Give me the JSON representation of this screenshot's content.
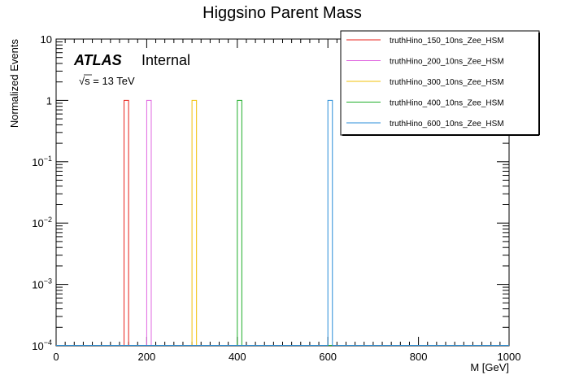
{
  "chart_data": {
    "type": "step-histogram",
    "title": "Higgsino Parent Mass",
    "xlabel": "M [GeV]",
    "ylabel": "Normalized Events",
    "xlim": [
      0,
      1000
    ],
    "ylim": [
      0.0001,
      10
    ],
    "yscale": "log",
    "bin_width": 10,
    "x_ticks": [
      {
        "value": 0,
        "label": "0"
      },
      {
        "value": 200,
        "label": "200"
      },
      {
        "value": 400,
        "label": "400"
      },
      {
        "value": 600,
        "label": "600"
      },
      {
        "value": 800,
        "label": "800"
      },
      {
        "value": 1000,
        "label": "1000"
      }
    ],
    "y_ticks": [
      {
        "exp": 1,
        "base": "10",
        "sup": ""
      },
      {
        "exp": 0,
        "base": "1",
        "sup": ""
      },
      {
        "exp": -1,
        "base": "10",
        "sup": "−1"
      },
      {
        "exp": -2,
        "base": "10",
        "sup": "−2"
      },
      {
        "exp": -3,
        "base": "10",
        "sup": "−3"
      },
      {
        "exp": -4,
        "base": "10",
        "sup": "−4"
      }
    ],
    "series": [
      {
        "name": "truthHino_150_10ns_Zee_HSM",
        "color": "#e8231c",
        "bin_low": 150,
        "value": 1
      },
      {
        "name": "truthHino_200_10ns_Zee_HSM",
        "color": "#e066e0",
        "bin_low": 200,
        "value": 1
      },
      {
        "name": "truthHino_300_10ns_Zee_HSM",
        "color": "#f2c20a",
        "bin_low": 300,
        "value": 1
      },
      {
        "name": "truthHino_400_10ns_Zee_HSM",
        "color": "#1fae2a",
        "bin_low": 400,
        "value": 1
      },
      {
        "name": "truthHino_600_10ns_Zee_HSM",
        "color": "#2a8ed8",
        "bin_low": 600,
        "value": 1
      }
    ],
    "legend_position": "top-right",
    "annotations": {
      "experiment": "ATLAS",
      "status": "Internal",
      "energy_sqrt": "√s",
      "energy_rest": " = 13 TeV"
    }
  }
}
